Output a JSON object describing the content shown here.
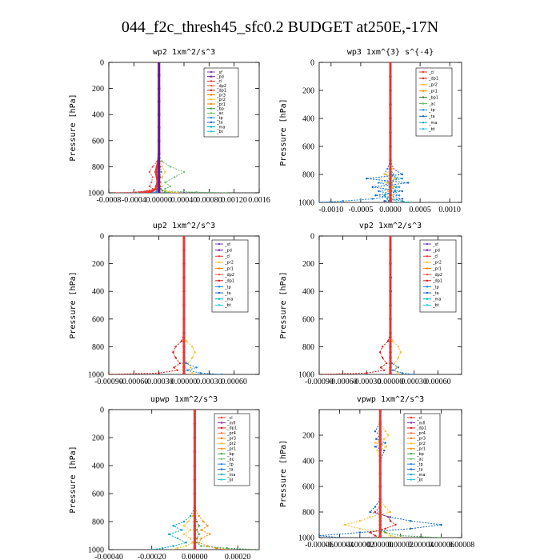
{
  "title": "044_f2c_thresh45_sfc0.2  BUDGET at250E,-17N",
  "colors": {
    "_sf": "#7b3fa8",
    "_pd": "#6a1b9a",
    "_cl": "#e53935",
    "_dp1": "#d81b1b",
    "_dp2": "#ef5350",
    "_pr1": "#fb8c00",
    "_pr2": "#fbc02d",
    "_pr3": "#f57c00",
    "_pr4": "#ff7043",
    "_bp": "#43a047",
    "_bp1": "#2e7d32",
    "_ac": "#66bb6a",
    "_tp": "#1e88e5",
    "_ta": "#1565c0",
    "_ma": "#00acc1",
    "_bt": "#26c6da",
    "_mfl": "#8e24aa"
  },
  "chart_data": [
    {
      "type": "line",
      "title": "wp2   1xm^2/s^3",
      "ylabel": "Pressure  [hPa]",
      "ylim": [
        1000,
        0
      ],
      "xlim": [
        -0.0008,
        0.0016
      ],
      "xticks": [
        "-0.0008",
        "-0.0004",
        "0.00000",
        "0.00040",
        "0.00080",
        "0.00120",
        "0.0016"
      ],
      "yticks": [
        "0",
        "200",
        "400",
        "600",
        "800",
        "1000"
      ],
      "legend": [
        "_sf",
        "_pd",
        "_cl",
        "_dp2",
        "_dp1",
        "_pr3",
        "_pr2",
        "_pr1",
        "_bp",
        "_ac",
        "_tp",
        "_ta",
        "_ma",
        "_bt"
      ],
      "p": [
        0,
        100,
        200,
        300,
        400,
        500,
        600,
        700,
        760,
        800,
        840,
        880,
        920,
        950,
        970,
        985,
        995,
        1000
      ],
      "series": [
        {
          "name": "_ac",
          "values": [
            0,
            0,
            0,
            0,
            0,
            0,
            0,
            0,
            5e-05,
            0.00018,
            0.0004,
            0.00025,
            0.0001,
            0.00018,
            0.0001,
            5e-05,
            0.0006,
            0.0011
          ]
        },
        {
          "name": "_dp2",
          "values": [
            0,
            0,
            0,
            0,
            0,
            0,
            0,
            0,
            -3e-05,
            -0.0001,
            -0.00015,
            -0.0001,
            -0.00012,
            -0.00015,
            -0.0001,
            -0.0002,
            -0.0004,
            -0.0007
          ]
        },
        {
          "name": "_pr2",
          "values": [
            0,
            0,
            0,
            0,
            0,
            0,
            0,
            0,
            2e-05,
            5e-05,
            0.0001,
            5e-05,
            3e-05,
            5e-05,
            2e-05,
            0.0001,
            0.0002,
            0.0003
          ]
        },
        {
          "name": "_bp",
          "values": [
            0,
            0,
            0,
            0,
            0,
            0,
            0,
            0,
            0,
            2e-05,
            4e-05,
            2e-05,
            1e-05,
            2e-05,
            3e-05,
            5e-05,
            0.0001,
            0.00015
          ]
        },
        {
          "name": "_tp",
          "values": [
            0,
            0,
            0,
            0,
            0,
            0,
            0,
            0,
            0,
            -1e-05,
            -2e-05,
            -1e-05,
            1e-05,
            0,
            -2e-05,
            -3e-05,
            -5e-05,
            -0.0001
          ]
        },
        {
          "name": "_cl",
          "values": [
            0,
            0,
            0,
            0,
            0,
            0,
            0,
            0,
            -1e-05,
            -3e-05,
            -5e-05,
            -3e-05,
            -2e-05,
            -4e-05,
            -5e-05,
            -0.0001,
            -0.0002,
            -0.0003
          ]
        },
        {
          "name": "_pd",
          "values": [
            0,
            0,
            0,
            0,
            0,
            0,
            0,
            0,
            0,
            0,
            0,
            0,
            0,
            0,
            0,
            0,
            0,
            0
          ]
        }
      ]
    },
    {
      "type": "line",
      "title": "wp3   1xm^{3} s^{-4}",
      "ylabel": "Pressure  [hPa]",
      "ylim": [
        1000,
        0
      ],
      "xlim": [
        -0.0012,
        0.0012
      ],
      "xticks": [
        "-0.0010",
        "-0.0005",
        "0.0000",
        "0.0005",
        "0.0010"
      ],
      "yticks": [
        "0",
        "200",
        "400",
        "600",
        "800",
        "1000"
      ],
      "legend": [
        "_cl",
        "_dp1",
        "_pr2",
        "_pr1",
        "_bp1",
        "_ac",
        "_tp",
        "_ta",
        "_ma",
        "_bt"
      ],
      "p": [
        0,
        100,
        200,
        300,
        400,
        500,
        600,
        700,
        760,
        800,
        830,
        860,
        890,
        920,
        950,
        975,
        990,
        1000
      ],
      "series": [
        {
          "name": "_ta",
          "values": [
            0,
            0,
            0,
            0,
            0,
            0,
            0,
            0,
            5e-05,
            0.0002,
            -0.0004,
            0.0003,
            -0.0003,
            0.0002,
            -0.00025,
            0.0002,
            -0.0001,
            0.0001
          ]
        },
        {
          "name": "_tp",
          "values": [
            0,
            0,
            0,
            0,
            0,
            0,
            0,
            0,
            -5e-05,
            -0.0001,
            0.0002,
            -0.0002,
            0.00015,
            -0.0002,
            0.00015,
            -0.0003,
            -0.0008,
            -0.0012
          ]
        },
        {
          "name": "_ma",
          "values": [
            0,
            0,
            0,
            0,
            0,
            0,
            0,
            0,
            0,
            5e-05,
            0.0001,
            -5e-05,
            0.0001,
            8e-05,
            -0.0001,
            -5e-05,
            0.0002,
            0.0003
          ]
        },
        {
          "name": "_pr2",
          "values": [
            0,
            0,
            0,
            0,
            0,
            0,
            0,
            0,
            4e-05,
            -0.0001,
            8e-05,
            -6e-05,
            5e-05,
            -4e-05,
            3e-05,
            2e-05,
            1e-05,
            0
          ]
        },
        {
          "name": "_ac",
          "values": [
            0,
            0,
            0,
            0,
            0,
            0,
            0,
            0,
            0,
            2e-05,
            -2e-05,
            3e-05,
            -2e-05,
            2e-05,
            -1e-05,
            1e-05,
            0,
            0
          ]
        },
        {
          "name": "_cl",
          "values": [
            0,
            0,
            0,
            0,
            0,
            0,
            0,
            0,
            0,
            0,
            0,
            0,
            0,
            0,
            0,
            0,
            0,
            0
          ]
        }
      ]
    },
    {
      "type": "line",
      "title": "up2   1xm^2/s^3",
      "ylabel": "Pressure  [hPa]",
      "ylim": [
        1000,
        0
      ],
      "xlim": [
        -0.0009,
        0.0009
      ],
      "xticks": [
        "-0.00090",
        "-0.00060",
        "-0.00030",
        "0.00000",
        "0.00030",
        "0.00060"
      ],
      "yticks": [
        "0",
        "200",
        "400",
        "600",
        "800",
        "1000"
      ],
      "legend": [
        "_sf",
        "_pd",
        "_cl",
        "_pr2",
        "_pr1",
        "_dp2",
        "_dp1",
        "_tp",
        "_ta",
        "_ma",
        "_bt"
      ],
      "p": [
        0,
        100,
        200,
        300,
        400,
        500,
        600,
        700,
        760,
        800,
        840,
        880,
        920,
        950,
        970,
        990,
        1000
      ],
      "series": [
        {
          "name": "_dp1",
          "values": [
            0,
            0,
            0,
            0,
            0,
            0,
            0,
            0,
            -3e-05,
            -0.0001,
            -0.00013,
            -0.0001,
            -5e-05,
            -0.00012,
            -8e-05,
            -0.0003,
            -0.0009
          ]
        },
        {
          "name": "_pr2",
          "values": [
            0,
            0,
            0,
            0,
            0,
            0,
            0,
            0,
            3e-05,
            0.0001,
            0.00013,
            0.0001,
            5e-05,
            8e-05,
            5e-05,
            0.0001,
            0.0001
          ]
        },
        {
          "name": "_tp",
          "values": [
            0,
            0,
            0,
            0,
            0,
            0,
            0,
            0,
            0,
            0,
            0,
            0,
            3e-05,
            0.00015,
            4e-05,
            0.0002,
            0.00045
          ]
        },
        {
          "name": "_cl",
          "values": [
            0,
            0,
            0,
            0,
            0,
            0,
            0,
            0,
            0,
            0,
            0,
            0,
            0,
            0,
            0,
            0,
            0
          ]
        }
      ]
    },
    {
      "type": "line",
      "title": "vp2   1xm^2/s^3",
      "ylabel": "Pressure  [hPa]",
      "ylim": [
        1000,
        0
      ],
      "xlim": [
        -0.0009,
        0.0009
      ],
      "xticks": [
        "-0.00090",
        "-0.00060",
        "-0.00030",
        "0.00000",
        "0.00030",
        "0.00060"
      ],
      "yticks": [
        "0",
        "200",
        "400",
        "600",
        "800",
        "1000"
      ],
      "legend": [
        "_sf",
        "_pd",
        "_cl",
        "_pr2",
        "_pr1",
        "_dp2",
        "_dp1",
        "_tp",
        "_ta",
        "_ma",
        "_bt"
      ],
      "p": [
        0,
        100,
        200,
        300,
        400,
        500,
        600,
        700,
        760,
        800,
        840,
        880,
        920,
        950,
        970,
        990,
        1000
      ],
      "series": [
        {
          "name": "_dp1",
          "values": [
            0,
            0,
            0,
            0,
            0,
            0,
            0,
            0,
            -3e-05,
            -0.0001,
            -0.00013,
            -0.0001,
            -5e-05,
            -0.00012,
            -8e-05,
            -0.0003,
            -0.0009
          ]
        },
        {
          "name": "_pr2",
          "values": [
            0,
            0,
            0,
            0,
            0,
            0,
            0,
            0,
            3e-05,
            0.0001,
            0.00013,
            0.0001,
            5e-05,
            8e-05,
            5e-05,
            0.0001,
            0.0001
          ]
        },
        {
          "name": "_tp",
          "values": [
            0,
            0,
            0,
            1e-05,
            1e-05,
            0,
            0,
            0,
            0,
            0,
            0,
            0,
            2e-05,
            0.0001,
            3e-05,
            0.00015,
            0.0003
          ]
        },
        {
          "name": "_cl",
          "values": [
            0,
            0,
            0,
            0,
            0,
            0,
            0,
            0,
            0,
            0,
            0,
            0,
            0,
            0,
            0,
            0,
            0
          ]
        }
      ]
    },
    {
      "type": "line",
      "title": "upwp   1xm^2/s^3",
      "ylabel": "Pressure  [hPa]",
      "ylim": [
        1000,
        0
      ],
      "xlim": [
        -0.0004,
        0.0003
      ],
      "xticks": [
        "-0.00040",
        "-0.00020",
        "0.00000",
        "0.00020"
      ],
      "yticks": [
        "0",
        "200",
        "400",
        "600",
        "800",
        "1000"
      ],
      "legend": [
        "_cl",
        "_mfl",
        "_dp1",
        "_pr4",
        "_pr3",
        "_pr2",
        "_pr1",
        "_bp",
        "_ac",
        "_tp",
        "_ta",
        "_ma",
        "_bt"
      ],
      "p": [
        0,
        100,
        200,
        300,
        400,
        500,
        600,
        700,
        760,
        800,
        830,
        860,
        890,
        920,
        950,
        975,
        990,
        1000
      ],
      "series": [
        {
          "name": "_ma",
          "values": [
            0,
            0,
            0,
            0,
            0,
            0,
            0,
            0,
            -2e-05,
            -5e-05,
            -0.0001,
            -6e-05,
            -0.00012,
            -8e-05,
            -4e-05,
            -0.0001,
            -0.00015,
            -0.0002
          ]
        },
        {
          "name": "_pr1",
          "values": [
            0,
            0,
            0,
            0,
            0,
            0,
            0,
            0,
            2e-05,
            4e-05,
            6e-05,
            3e-05,
            7e-05,
            3e-05,
            2e-05,
            6e-05,
            0.0001,
            0.00015
          ]
        },
        {
          "name": "_pr2",
          "values": [
            0,
            0,
            0,
            0,
            0,
            0,
            0,
            0,
            -1e-05,
            -3e-05,
            -5e-05,
            -2e-05,
            -5e-05,
            -2e-05,
            -1e-05,
            -4e-05,
            -8e-05,
            -0.0001
          ]
        },
        {
          "name": "_bp",
          "values": [
            0,
            0,
            0,
            0,
            0,
            0,
            0,
            0,
            0,
            1e-05,
            2e-05,
            1e-05,
            2e-05,
            1e-05,
            1e-05,
            3e-05,
            0.00015,
            0.0003
          ]
        },
        {
          "name": "_cl",
          "values": [
            0,
            0,
            0,
            0,
            0,
            0,
            0,
            0,
            0,
            0,
            0,
            0,
            0,
            0,
            0,
            0,
            0,
            0
          ]
        }
      ]
    },
    {
      "type": "line",
      "title": "vpwp   1xm^2/s^3",
      "ylabel": "Pressure  [hPa]",
      "ylim": [
        1000,
        0
      ],
      "xlim": [
        -6e-05,
        8e-05
      ],
      "xticks": [
        "-0.00006",
        "-0.00004",
        "-0.00002",
        "0.00000",
        "0.00002",
        "0.00004",
        "0.00006",
        "0.00008"
      ],
      "yticks": [
        "200",
        "400",
        "600",
        "800",
        "1000"
      ],
      "legend": [
        "_cl",
        "_mfl",
        "_dp1",
        "_pr4",
        "_pr3",
        "_pr2",
        "_pr1",
        "_bp",
        "_ac",
        "_tp",
        "_ta",
        "_ma",
        "_bt"
      ],
      "p": [
        0,
        100,
        170,
        200,
        230,
        260,
        290,
        320,
        400,
        500,
        600,
        700,
        760,
        800,
        840,
        870,
        900,
        930,
        960,
        985,
        1000
      ],
      "series": [
        {
          "name": "_ta",
          "values": [
            0,
            0,
            -5e-06,
            0,
            -4e-06,
            5e-06,
            -5e-06,
            4e-06,
            0,
            0,
            0,
            0,
            -5e-06,
            -1e-05,
            1e-05,
            3e-05,
            6e-05,
            3e-05,
            -2e-05,
            -6e-05,
            -4e-05
          ]
        },
        {
          "name": "_pr2",
          "values": [
            0,
            0,
            5e-06,
            8e-06,
            4e-06,
            -5e-06,
            6e-06,
            -3e-06,
            0,
            0,
            0,
            0,
            5e-06,
            1e-05,
            -1e-05,
            -2e-05,
            -3.5e-05,
            -2e-05,
            5e-06,
            1e-05,
            2e-05
          ]
        },
        {
          "name": "_dp1",
          "values": [
            0,
            0,
            0,
            0,
            0,
            0,
            0,
            0,
            0,
            0,
            0,
            0,
            0,
            -5e-06,
            8e-06,
            1e-05,
            1.5e-05,
            5e-06,
            -1e-05,
            -5e-06,
            0
          ]
        },
        {
          "name": "_bp",
          "values": [
            0,
            0,
            0,
            0,
            0,
            0,
            0,
            0,
            0,
            0,
            0,
            0,
            0,
            0,
            0,
            0,
            0,
            0,
            5e-06,
            2e-05,
            6e-05
          ]
        },
        {
          "name": "_cl",
          "values": [
            0,
            0,
            0,
            0,
            0,
            0,
            0,
            0,
            0,
            0,
            0,
            0,
            0,
            0,
            0,
            0,
            0,
            0,
            0,
            0,
            0
          ]
        }
      ]
    }
  ]
}
